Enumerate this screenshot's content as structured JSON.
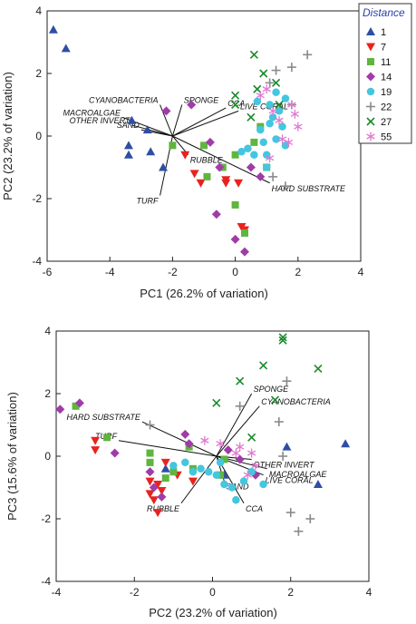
{
  "legend": {
    "title": "Distance",
    "entries": [
      {
        "label": "1",
        "shape": "triangle-up",
        "color": "#2f4ea3"
      },
      {
        "label": "7",
        "shape": "triangle-down",
        "color": "#e8231f"
      },
      {
        "label": "11",
        "shape": "square",
        "color": "#5fb53e"
      },
      {
        "label": "14",
        "shape": "diamond",
        "color": "#a03ca8"
      },
      {
        "label": "19",
        "shape": "circle",
        "color": "#44c6e0"
      },
      {
        "label": "22",
        "shape": "plus",
        "color": "#8a8a8a"
      },
      {
        "label": "27",
        "shape": "cross",
        "color": "#1a8a2c"
      },
      {
        "label": "55",
        "shape": "asterisk",
        "color": "#e07ad0"
      }
    ]
  },
  "chart_data": [
    {
      "type": "scatter",
      "xlabel": "PC1 (26.2% of variation)",
      "ylabel": "PC2 (23.2% of variation)",
      "xlim": [
        -6,
        4
      ],
      "ylim": [
        -4,
        4
      ],
      "xticks": [
        -6,
        -4,
        -2,
        0,
        2,
        4
      ],
      "yticks": [
        -4,
        -2,
        0,
        2,
        4
      ],
      "vector_origin": [
        -2,
        0
      ],
      "vectors": [
        {
          "label": "CYANOBACTERIA",
          "end": [
            -2.4,
            1.0
          ]
        },
        {
          "label": "MACROALGAE",
          "end": [
            -3.6,
            0.6
          ]
        },
        {
          "label": "OTHER INVERT",
          "end": [
            -3.3,
            0.35
          ]
        },
        {
          "label": "SAND",
          "end": [
            -3.0,
            0.2
          ]
        },
        {
          "label": "SPONGE",
          "end": [
            -1.7,
            1.0
          ]
        },
        {
          "label": "CCA",
          "end": [
            -0.3,
            0.9
          ]
        },
        {
          "label": "LIVE CORAL",
          "end": [
            0.1,
            0.8
          ]
        },
        {
          "label": "RUBBLE",
          "end": [
            -1.5,
            -0.6
          ]
        },
        {
          "label": "HARD SUBSTRATE",
          "end": [
            1.1,
            -1.5
          ]
        },
        {
          "label": "TURF",
          "end": [
            -2.4,
            -1.9
          ]
        }
      ],
      "series": [
        {
          "name": "1",
          "points": [
            [
              -5.8,
              3.4
            ],
            [
              -5.4,
              2.8
            ],
            [
              -3.3,
              0.5
            ],
            [
              -3.4,
              -0.3
            ],
            [
              -3.4,
              -0.6
            ],
            [
              -2.8,
              0.2
            ],
            [
              -2.7,
              -0.5
            ],
            [
              -2.3,
              -1.0
            ]
          ]
        },
        {
          "name": "7",
          "points": [
            [
              -1.6,
              -0.6
            ],
            [
              -1.3,
              -1.2
            ],
            [
              -1.1,
              -1.5
            ],
            [
              -0.3,
              -1.4
            ],
            [
              -0.3,
              -1.5
            ],
            [
              0.1,
              -1.5
            ],
            [
              0.2,
              -2.9
            ],
            [
              0.3,
              -3.0
            ]
          ]
        },
        {
          "name": "11",
          "points": [
            [
              -2.0,
              -0.3
            ],
            [
              -1.0,
              -0.3
            ],
            [
              -0.4,
              -1.0
            ],
            [
              0.0,
              -0.6
            ],
            [
              0.0,
              -2.2
            ],
            [
              0.3,
              -3.1
            ],
            [
              0.6,
              -0.2
            ],
            [
              0.8,
              0.3
            ],
            [
              1.0,
              -1.0
            ],
            [
              -0.9,
              -1.3
            ]
          ]
        },
        {
          "name": "14",
          "points": [
            [
              -2.2,
              0.8
            ],
            [
              -1.4,
              1.0
            ],
            [
              -0.8,
              -0.2
            ],
            [
              -0.5,
              -1.0
            ],
            [
              -0.6,
              -2.5
            ],
            [
              0.0,
              -3.3
            ],
            [
              0.3,
              -3.7
            ],
            [
              0.5,
              -1.0
            ],
            [
              0.8,
              -1.3
            ]
          ]
        },
        {
          "name": "19",
          "points": [
            [
              0.2,
              -0.5
            ],
            [
              0.4,
              -0.4
            ],
            [
              0.6,
              -0.6
            ],
            [
              0.7,
              1.1
            ],
            [
              0.8,
              0.2
            ],
            [
              1.0,
              -0.6
            ],
            [
              1.0,
              -1.0
            ],
            [
              1.1,
              0.4
            ],
            [
              1.2,
              0.6
            ],
            [
              1.3,
              -0.1
            ],
            [
              1.4,
              0.8
            ],
            [
              1.5,
              0.3
            ],
            [
              1.6,
              -0.3
            ],
            [
              0.9,
              -0.2
            ],
            [
              1.3,
              1.4
            ],
            [
              1.1,
              1.0
            ],
            [
              1.6,
              1.2
            ]
          ]
        },
        {
          "name": "22",
          "points": [
            [
              1.1,
              1.7
            ],
            [
              1.3,
              2.1
            ],
            [
              1.8,
              2.2
            ],
            [
              2.3,
              2.6
            ],
            [
              1.8,
              1.0
            ],
            [
              1.6,
              -1.6
            ],
            [
              1.2,
              -1.3
            ]
          ]
        },
        {
          "name": "27",
          "points": [
            [
              0.0,
              1.3
            ],
            [
              0.6,
              2.6
            ],
            [
              0.9,
              2.0
            ],
            [
              0.7,
              1.5
            ],
            [
              1.3,
              1.7
            ],
            [
              1.4,
              1.0
            ],
            [
              0.5,
              0.6
            ],
            [
              0.0,
              1.0
            ]
          ]
        },
        {
          "name": "55",
          "points": [
            [
              0.8,
              1.3
            ],
            [
              1.0,
              1.5
            ],
            [
              1.2,
              0.8
            ],
            [
              1.4,
              0.5
            ],
            [
              1.5,
              -0.1
            ],
            [
              1.8,
              1.0
            ],
            [
              2.0,
              0.3
            ],
            [
              1.7,
              -0.2
            ],
            [
              1.9,
              0.7
            ],
            [
              1.1,
              -0.7
            ]
          ]
        }
      ]
    },
    {
      "type": "scatter",
      "xlabel": "PC2 (23.2% of variation)",
      "ylabel": "PC3 (15.6% of variation)",
      "xlim": [
        -4,
        4
      ],
      "ylim": [
        -4,
        4
      ],
      "xticks": [
        -4,
        -2,
        0,
        2,
        4
      ],
      "yticks": [
        -4,
        -2,
        0,
        2,
        4
      ],
      "vector_origin": [
        0.1,
        0
      ],
      "vectors": [
        {
          "label": "SPONGE",
          "end": [
            1.0,
            2.0
          ]
        },
        {
          "label": "CYANOBACTERIA",
          "end": [
            1.2,
            1.6
          ]
        },
        {
          "label": "HARD SUBSTRATE",
          "end": [
            -1.8,
            1.1
          ]
        },
        {
          "label": "TURF",
          "end": [
            -2.4,
            0.5
          ]
        },
        {
          "label": "OTHER INVERT",
          "end": [
            1.0,
            -0.1
          ]
        },
        {
          "label": "MACROALGAE",
          "end": [
            1.4,
            -0.4
          ]
        },
        {
          "label": "LIVE CORAL",
          "end": [
            1.3,
            -0.6
          ]
        },
        {
          "label": "SAND",
          "end": [
            0.3,
            -0.8
          ]
        },
        {
          "label": "CCA",
          "end": [
            0.8,
            -1.5
          ]
        },
        {
          "label": "RUBBLE",
          "end": [
            -0.8,
            -1.5
          ]
        }
      ],
      "series": [
        {
          "name": "1",
          "points": [
            [
              3.4,
              0.4
            ],
            [
              2.7,
              -0.9
            ],
            [
              1.9,
              0.3
            ],
            [
              0.3,
              -0.6
            ],
            [
              -1.2,
              -0.4
            ]
          ]
        },
        {
          "name": "7",
          "points": [
            [
              -3.0,
              0.5
            ],
            [
              -3.0,
              0.2
            ],
            [
              -1.6,
              -0.8
            ],
            [
              -1.4,
              -0.9
            ],
            [
              -1.3,
              -1.1
            ],
            [
              -1.6,
              -1.2
            ],
            [
              -1.5,
              -1.4
            ],
            [
              -1.4,
              -1.8
            ],
            [
              -0.9,
              -0.6
            ],
            [
              -0.5,
              -0.8
            ],
            [
              -1.2,
              -0.2
            ]
          ]
        },
        {
          "name": "11",
          "points": [
            [
              -3.5,
              1.6
            ],
            [
              -2.7,
              0.6
            ],
            [
              -1.6,
              0.1
            ],
            [
              -1.2,
              -0.7
            ],
            [
              -1.0,
              -0.5
            ],
            [
              -0.6,
              0.3
            ],
            [
              -0.5,
              -0.4
            ],
            [
              0.2,
              -0.6
            ],
            [
              0.3,
              -0.1
            ],
            [
              -1.6,
              -0.2
            ]
          ]
        },
        {
          "name": "14",
          "points": [
            [
              -3.9,
              1.5
            ],
            [
              -3.4,
              1.7
            ],
            [
              -2.5,
              0.1
            ],
            [
              -1.6,
              -0.5
            ],
            [
              -1.5,
              -1.0
            ],
            [
              -1.3,
              -1.3
            ],
            [
              -0.7,
              0.7
            ],
            [
              -0.6,
              0.4
            ],
            [
              0.4,
              0.2
            ],
            [
              0.7,
              -0.1
            ],
            [
              1.1,
              -0.6
            ]
          ]
        },
        {
          "name": "19",
          "points": [
            [
              -1.0,
              -0.3
            ],
            [
              -0.7,
              -0.2
            ],
            [
              -0.5,
              -0.5
            ],
            [
              -0.3,
              -0.4
            ],
            [
              -0.1,
              -0.5
            ],
            [
              0.1,
              -0.6
            ],
            [
              0.3,
              -0.9
            ],
            [
              0.5,
              -1.0
            ],
            [
              0.6,
              -1.4
            ],
            [
              0.8,
              -0.8
            ],
            [
              1.0,
              -0.5
            ],
            [
              1.3,
              -0.9
            ],
            [
              0.2,
              -0.2
            ]
          ]
        },
        {
          "name": "22",
          "points": [
            [
              -1.6,
              1.0
            ],
            [
              0.7,
              1.6
            ],
            [
              1.9,
              2.4
            ],
            [
              1.7,
              1.1
            ],
            [
              1.8,
              0.0
            ],
            [
              2.0,
              -1.8
            ],
            [
              2.2,
              -2.4
            ],
            [
              2.5,
              -2.0
            ]
          ]
        },
        {
          "name": "27",
          "points": [
            [
              1.8,
              3.7
            ],
            [
              1.8,
              3.8
            ],
            [
              2.7,
              2.8
            ],
            [
              1.3,
              2.9
            ],
            [
              0.7,
              2.4
            ],
            [
              0.1,
              1.7
            ],
            [
              1.6,
              1.8
            ],
            [
              1.0,
              0.6
            ]
          ]
        },
        {
          "name": "55",
          "points": [
            [
              -0.2,
              0.5
            ],
            [
              0.2,
              0.4
            ],
            [
              0.6,
              0.1
            ],
            [
              0.9,
              -0.6
            ],
            [
              1.1,
              -0.3
            ],
            [
              1.0,
              0.1
            ],
            [
              0.7,
              0.3
            ]
          ]
        }
      ]
    }
  ]
}
